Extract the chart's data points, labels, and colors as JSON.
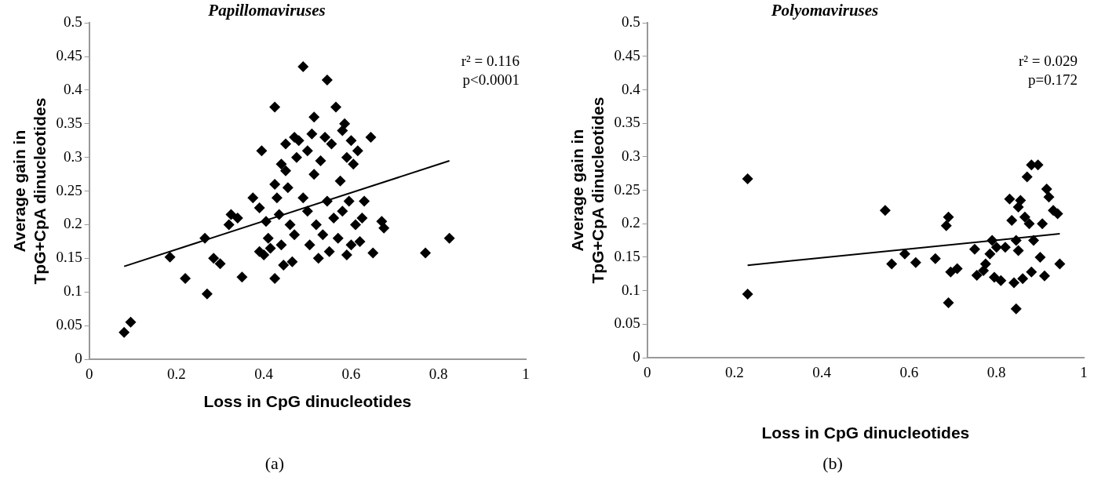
{
  "chart_data": [
    {
      "type": "scatter",
      "title": "Papillomaviruses",
      "xlabel": "Loss in CpG dinucleotides",
      "ylabel": "Average gain in TpG+CpA dinucleotides",
      "annotations": [
        "r² = 0.116",
        "p<0.0001",
        "(a)"
      ],
      "xlim": [
        0,
        1
      ],
      "xticks": [
        0,
        0.2,
        0.4,
        0.6,
        0.8,
        1
      ],
      "ylim": [
        0,
        0.5
      ],
      "yticks": [
        0,
        0.05,
        0.1,
        0.15,
        0.2,
        0.25,
        0.3,
        0.35,
        0.4,
        0.45,
        0.5
      ],
      "marker": "diamond",
      "series": [
        {
          "color": "#000000",
          "x": [
            0.08,
            0.095,
            0.185,
            0.22,
            0.265,
            0.27,
            0.285,
            0.3,
            0.32,
            0.325,
            0.34,
            0.35,
            0.375,
            0.39,
            0.39,
            0.395,
            0.4,
            0.405,
            0.41,
            0.415,
            0.425,
            0.425,
            0.425,
            0.43,
            0.435,
            0.44,
            0.44,
            0.445,
            0.45,
            0.45,
            0.455,
            0.46,
            0.465,
            0.47,
            0.47,
            0.475,
            0.48,
            0.49,
            0.49,
            0.5,
            0.5,
            0.505,
            0.51,
            0.515,
            0.515,
            0.52,
            0.525,
            0.53,
            0.535,
            0.54,
            0.545,
            0.545,
            0.55,
            0.555,
            0.56,
            0.565,
            0.57,
            0.575,
            0.58,
            0.58,
            0.585,
            0.59,
            0.59,
            0.595,
            0.6,
            0.6,
            0.605,
            0.61,
            0.615,
            0.62,
            0.625,
            0.63,
            0.645,
            0.65,
            0.67,
            0.675,
            0.77,
            0.825
          ],
          "values": [
            0.04,
            0.055,
            0.152,
            0.12,
            0.18,
            0.097,
            0.15,
            0.142,
            0.2,
            0.215,
            0.21,
            0.122,
            0.24,
            0.225,
            0.16,
            0.31,
            0.155,
            0.205,
            0.18,
            0.165,
            0.375,
            0.26,
            0.12,
            0.24,
            0.215,
            0.29,
            0.17,
            0.14,
            0.32,
            0.28,
            0.255,
            0.2,
            0.145,
            0.33,
            0.185,
            0.3,
            0.325,
            0.435,
            0.24,
            0.31,
            0.22,
            0.17,
            0.335,
            0.36,
            0.275,
            0.2,
            0.15,
            0.295,
            0.185,
            0.33,
            0.415,
            0.235,
            0.16,
            0.32,
            0.21,
            0.375,
            0.18,
            0.265,
            0.34,
            0.22,
            0.35,
            0.3,
            0.155,
            0.235,
            0.325,
            0.17,
            0.29,
            0.2,
            0.31,
            0.175,
            0.21,
            0.235,
            0.33,
            0.158,
            0.205,
            0.195,
            0.158,
            0.18
          ]
        },
        {
          "type": "line",
          "color": "#000000",
          "marker": "none",
          "x": [
            0.08,
            0.825
          ],
          "values": [
            0.138,
            0.295
          ]
        }
      ]
    },
    {
      "type": "scatter",
      "title": "Polyomaviruses",
      "xlabel": "Loss in CpG dinucleotides",
      "ylabel": "Average gain in TpG+CpA dinucleotides",
      "annotations": [
        "r² = 0.029",
        "p=0.172",
        "(b)"
      ],
      "xlim": [
        0,
        1
      ],
      "xticks": [
        0,
        0.2,
        0.4,
        0.6,
        0.8,
        1
      ],
      "ylim": [
        0,
        0.5
      ],
      "yticks": [
        0,
        0.05,
        0.1,
        0.15,
        0.2,
        0.25,
        0.3,
        0.35,
        0.4,
        0.45,
        0.5
      ],
      "marker": "diamond",
      "series": [
        {
          "color": "#000000",
          "x": [
            0.23,
            0.23,
            0.545,
            0.56,
            0.59,
            0.615,
            0.66,
            0.685,
            0.69,
            0.69,
            0.695,
            0.71,
            0.75,
            0.755,
            0.77,
            0.775,
            0.785,
            0.79,
            0.795,
            0.8,
            0.81,
            0.82,
            0.83,
            0.835,
            0.84,
            0.845,
            0.845,
            0.85,
            0.85,
            0.855,
            0.86,
            0.865,
            0.87,
            0.875,
            0.88,
            0.88,
            0.885,
            0.895,
            0.9,
            0.905,
            0.91,
            0.915,
            0.92,
            0.93,
            0.94,
            0.945
          ],
          "values": [
            0.267,
            0.095,
            0.22,
            0.14,
            0.155,
            0.142,
            0.148,
            0.197,
            0.21,
            0.082,
            0.128,
            0.133,
            0.162,
            0.123,
            0.13,
            0.14,
            0.155,
            0.175,
            0.12,
            0.165,
            0.115,
            0.165,
            0.237,
            0.205,
            0.112,
            0.073,
            0.175,
            0.225,
            0.16,
            0.235,
            0.118,
            0.21,
            0.27,
            0.2,
            0.128,
            0.288,
            0.175,
            0.288,
            0.15,
            0.2,
            0.122,
            0.252,
            0.24,
            0.22,
            0.215,
            0.14
          ]
        },
        {
          "type": "line",
          "color": "#000000",
          "marker": "none",
          "x": [
            0.23,
            0.945
          ],
          "values": [
            0.138,
            0.185
          ]
        }
      ]
    }
  ]
}
